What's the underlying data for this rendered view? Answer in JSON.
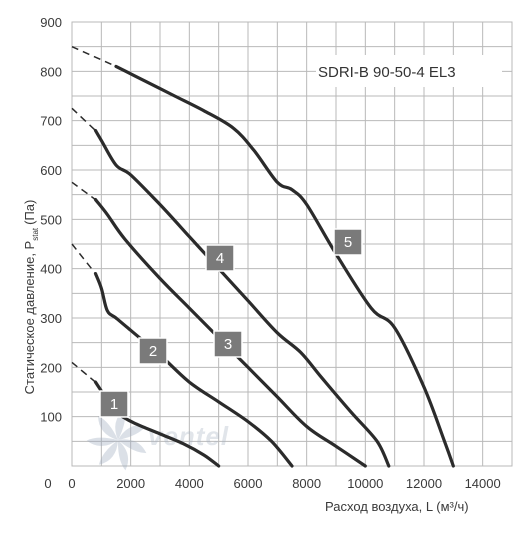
{
  "chart_data": {
    "type": "line",
    "title": "SDRI-B 90-50-4 EL3",
    "xlabel": "Расход воздуха, L (м³/ч)",
    "ylabel_main": "Статическое давление, P",
    "ylabel_sub": "stat",
    "ylabel_unit": "(Па)",
    "xlim": [
      0,
      15000
    ],
    "ylim": [
      0,
      900
    ],
    "x_ticks": [
      "0",
      "2000",
      "4000",
      "6000",
      "8000",
      "10000",
      "12000",
      "14000"
    ],
    "x_tick_values": [
      0,
      2000,
      4000,
      6000,
      8000,
      10000,
      12000,
      14000
    ],
    "y_ticks": [
      "100",
      "200",
      "300",
      "400",
      "500",
      "600",
      "700",
      "800",
      "900"
    ],
    "y_tick_values": [
      100,
      200,
      300,
      400,
      500,
      600,
      700,
      800,
      900
    ],
    "grid": true,
    "watermark": "ventel",
    "series": [
      {
        "name": "1",
        "dashed": [
          [
            0,
            210
          ],
          [
            800,
            170
          ]
        ],
        "values": [
          [
            800,
            170
          ],
          [
            1200,
            135
          ],
          [
            1600,
            105
          ],
          [
            2200,
            85
          ],
          [
            3000,
            65
          ],
          [
            3800,
            45
          ],
          [
            4500,
            22
          ],
          [
            5000,
            0
          ]
        ]
      },
      {
        "name": "2",
        "dashed": [
          [
            0,
            450
          ],
          [
            800,
            390
          ]
        ],
        "values": [
          [
            800,
            390
          ],
          [
            1000,
            360
          ],
          [
            1200,
            315
          ],
          [
            1500,
            300
          ],
          [
            2000,
            275
          ],
          [
            3000,
            225
          ],
          [
            4000,
            170
          ],
          [
            5000,
            130
          ],
          [
            6000,
            90
          ],
          [
            6800,
            50
          ],
          [
            7500,
            0
          ]
        ]
      },
      {
        "name": "3",
        "dashed": [
          [
            0,
            575
          ],
          [
            800,
            540
          ]
        ],
        "values": [
          [
            800,
            540
          ],
          [
            1200,
            510
          ],
          [
            1800,
            460
          ],
          [
            3000,
            380
          ],
          [
            4000,
            320
          ],
          [
            5000,
            260
          ],
          [
            6000,
            200
          ],
          [
            7000,
            140
          ],
          [
            8000,
            80
          ],
          [
            9000,
            40
          ],
          [
            10000,
            0
          ]
        ]
      },
      {
        "name": "4",
        "dashed": [
          [
            0,
            725
          ],
          [
            800,
            680
          ]
        ],
        "values": [
          [
            800,
            680
          ],
          [
            1000,
            660
          ],
          [
            1500,
            610
          ],
          [
            2000,
            590
          ],
          [
            3000,
            530
          ],
          [
            4000,
            465
          ],
          [
            5000,
            400
          ],
          [
            6000,
            335
          ],
          [
            7000,
            270
          ],
          [
            7800,
            230
          ],
          [
            8500,
            180
          ],
          [
            9500,
            110
          ],
          [
            10400,
            50
          ],
          [
            10800,
            0
          ]
        ]
      },
      {
        "name": "5",
        "dashed": [
          [
            0,
            850
          ],
          [
            1500,
            810
          ]
        ],
        "values": [
          [
            1500,
            810
          ],
          [
            2500,
            780
          ],
          [
            3500,
            750
          ],
          [
            4500,
            720
          ],
          [
            5500,
            685
          ],
          [
            6200,
            640
          ],
          [
            7000,
            575
          ],
          [
            7500,
            560
          ],
          [
            8000,
            530
          ],
          [
            9000,
            430
          ],
          [
            10200,
            320
          ],
          [
            11000,
            280
          ],
          [
            12000,
            160
          ],
          [
            12700,
            50
          ],
          [
            13000,
            0
          ]
        ]
      }
    ],
    "badge_color": "#7a7a7a",
    "line_color": "#2b2b2b",
    "grid_color": "#b9b9b9"
  }
}
